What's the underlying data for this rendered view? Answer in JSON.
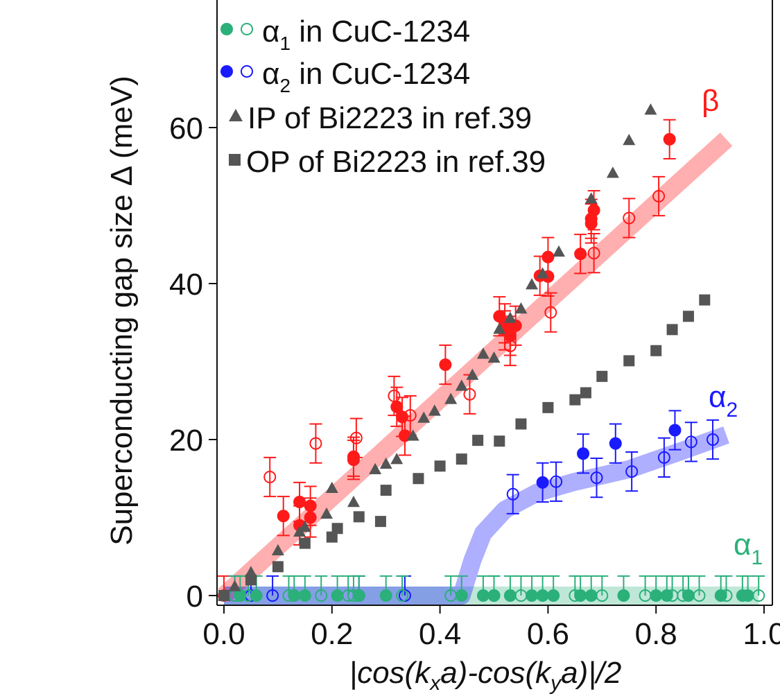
{
  "chart_data": {
    "type": "scatter",
    "xlabel": "|cos(k_x a)-cos(k_y a)|/2",
    "ylabel": "Superconducting gap size Δ (meV)",
    "xlim": [
      0.0,
      1.0
    ],
    "ylim": [
      0,
      75
    ],
    "x_ticks": [
      "0.0",
      "0.2",
      "0.4",
      "0.6",
      "0.8",
      "1.0"
    ],
    "y_ticks": [
      "0",
      "20",
      "40",
      "60"
    ],
    "grid": false,
    "legend_position": "top-left",
    "colors": {
      "alpha1": "#2bb07a",
      "alpha2": "#1a1aff",
      "beta": "#ff1a1a",
      "bi2223": "#555555"
    },
    "legend": [
      {
        "sym": "α",
        "sub": "1",
        "rest": " in CuC-1234",
        "marker": "green-circles"
      },
      {
        "sym": "α",
        "sub": "2",
        "rest": " in CuC-1234",
        "marker": "blue-circles"
      },
      {
        "text": "IP of Bi2223 in ref.39",
        "marker": "triangle"
      },
      {
        "text": "OP of Bi2223 in ref.39",
        "marker": "square"
      }
    ],
    "curve_labels": {
      "beta": {
        "sym": "β",
        "sub": ""
      },
      "alpha2": {
        "sym": "α",
        "sub": "2"
      },
      "alpha1": {
        "sym": "α",
        "sub": "1"
      }
    },
    "bands": {
      "beta": [
        [
          0.0,
          0.0
        ],
        [
          0.93,
          58.5
        ]
      ],
      "alpha2": [
        [
          0.0,
          0.0
        ],
        [
          0.44,
          0.0
        ],
        [
          0.46,
          4.5
        ],
        [
          0.48,
          8.0
        ],
        [
          0.52,
          11.0
        ],
        [
          0.58,
          13.2
        ],
        [
          0.65,
          14.6
        ],
        [
          0.75,
          16.2
        ],
        [
          0.85,
          18.6
        ],
        [
          0.93,
          20.6
        ]
      ],
      "alpha1": [
        [
          0.0,
          0.0
        ],
        [
          0.99,
          0.0
        ]
      ]
    },
    "series": [
      {
        "name": "β (filled)",
        "marker": "filled-circle",
        "color_key": "beta",
        "x": [
          0.0,
          0.11,
          0.14,
          0.14,
          0.16,
          0.16,
          0.24,
          0.24,
          0.32,
          0.33,
          0.335,
          0.41,
          0.51,
          0.52,
          0.52,
          0.53,
          0.54,
          0.585,
          0.6,
          0.6,
          0.66,
          0.68,
          0.68,
          0.685,
          0.825
        ],
        "y": [
          0.0,
          10.2,
          9.0,
          12.0,
          10.0,
          11.5,
          17.4,
          17.8,
          24.2,
          22.9,
          20.5,
          29.6,
          35.8,
          34.9,
          34.0,
          33.3,
          34.6,
          41.0,
          40.9,
          43.4,
          43.8,
          47.7,
          48.3,
          49.4,
          58.5
        ],
        "err": 2.5
      },
      {
        "name": "β (open)",
        "marker": "open-circle",
        "color_key": "beta",
        "x": [
          0.085,
          0.17,
          0.245,
          0.315,
          0.345,
          0.455,
          0.53,
          0.605,
          0.685,
          0.75,
          0.805
        ],
        "y": [
          15.2,
          19.5,
          20.2,
          25.6,
          23.1,
          25.8,
          32.0,
          36.3,
          43.9,
          48.4,
          51.2
        ],
        "err": 2.5
      },
      {
        "name": "α2 (filled)",
        "marker": "filled-circle",
        "color_key": "alpha2",
        "x": [
          0.59,
          0.665,
          0.725,
          0.835
        ],
        "y": [
          14.5,
          18.2,
          19.5,
          21.2
        ],
        "err": 2.5
      },
      {
        "name": "α2 (open)",
        "marker": "open-circle",
        "color_key": "alpha2",
        "x": [
          0.535,
          0.615,
          0.69,
          0.755,
          0.815,
          0.865,
          0.905,
          0.02,
          0.05,
          0.09,
          0.25,
          0.335
        ],
        "y": [
          13.0,
          14.6,
          15.1,
          15.9,
          17.7,
          19.7,
          20.0,
          0.0,
          0.0,
          0.0,
          0.0,
          0.0
        ],
        "err": 2.5
      },
      {
        "name": "α1 (filled)",
        "marker": "filled-circle",
        "color_key": "alpha1",
        "x": [
          0.03,
          0.06,
          0.13,
          0.15,
          0.21,
          0.25,
          0.3,
          0.44,
          0.48,
          0.5,
          0.53,
          0.57,
          0.59,
          0.61,
          0.66,
          0.68,
          0.74,
          0.8,
          0.82,
          0.86,
          0.92,
          0.96,
          0.97
        ],
        "y": [
          0,
          0,
          0,
          0,
          0,
          0,
          0,
          0,
          0,
          0,
          0,
          0,
          0,
          0,
          0,
          0,
          0,
          0,
          0,
          0,
          0,
          0,
          0
        ],
        "err": 2.5
      },
      {
        "name": "α1 (open)",
        "marker": "open-circle",
        "color_key": "alpha1",
        "x": [
          0.02,
          0.045,
          0.12,
          0.18,
          0.23,
          0.24,
          0.33,
          0.42,
          0.5,
          0.55,
          0.65,
          0.7,
          0.78,
          0.83,
          0.85,
          0.88,
          0.93,
          0.99
        ],
        "y": [
          0,
          0,
          0,
          0,
          0,
          0,
          0,
          0,
          0,
          0,
          0,
          0,
          0,
          0,
          0,
          0,
          0,
          0
        ],
        "err": 2.5
      },
      {
        "name": "IP of Bi2223 in ref.39",
        "marker": "triangle",
        "color_key": "bi2223",
        "x": [
          0.0,
          0.02,
          0.05,
          0.1,
          0.14,
          0.15,
          0.19,
          0.2,
          0.24,
          0.28,
          0.3,
          0.32,
          0.35,
          0.37,
          0.39,
          0.42,
          0.44,
          0.46,
          0.48,
          0.5,
          0.51,
          0.53,
          0.55,
          0.57,
          0.59,
          0.62,
          0.68,
          0.72,
          0.75,
          0.79
        ],
        "y": [
          0.0,
          1.2,
          3.0,
          5.8,
          8.2,
          8.8,
          10.5,
          13.8,
          12.0,
          16.2,
          16.9,
          17.5,
          20.5,
          22.8,
          23.7,
          25.2,
          26.9,
          28.3,
          31.0,
          30.5,
          34.2,
          35.6,
          36.8,
          39.9,
          41.3,
          44.1,
          50.9,
          54.2,
          58.4,
          62.3
        ],
        "err": 0
      },
      {
        "name": "OP of Bi2223 in ref.39",
        "marker": "square",
        "color_key": "bi2223",
        "x": [
          0.0,
          0.05,
          0.1,
          0.15,
          0.2,
          0.21,
          0.25,
          0.29,
          0.3,
          0.36,
          0.4,
          0.44,
          0.47,
          0.51,
          0.55,
          0.6,
          0.65,
          0.67,
          0.7,
          0.75,
          0.8,
          0.83,
          0.86,
          0.89
        ],
        "y": [
          0.0,
          2.0,
          3.7,
          6.7,
          7.5,
          8.6,
          10.1,
          9.5,
          13.5,
          15.0,
          16.6,
          17.5,
          19.9,
          19.8,
          22.0,
          24.1,
          25.1,
          26.0,
          28.1,
          30.1,
          31.4,
          34.1,
          35.8,
          37.9
        ],
        "err": 0
      }
    ]
  }
}
